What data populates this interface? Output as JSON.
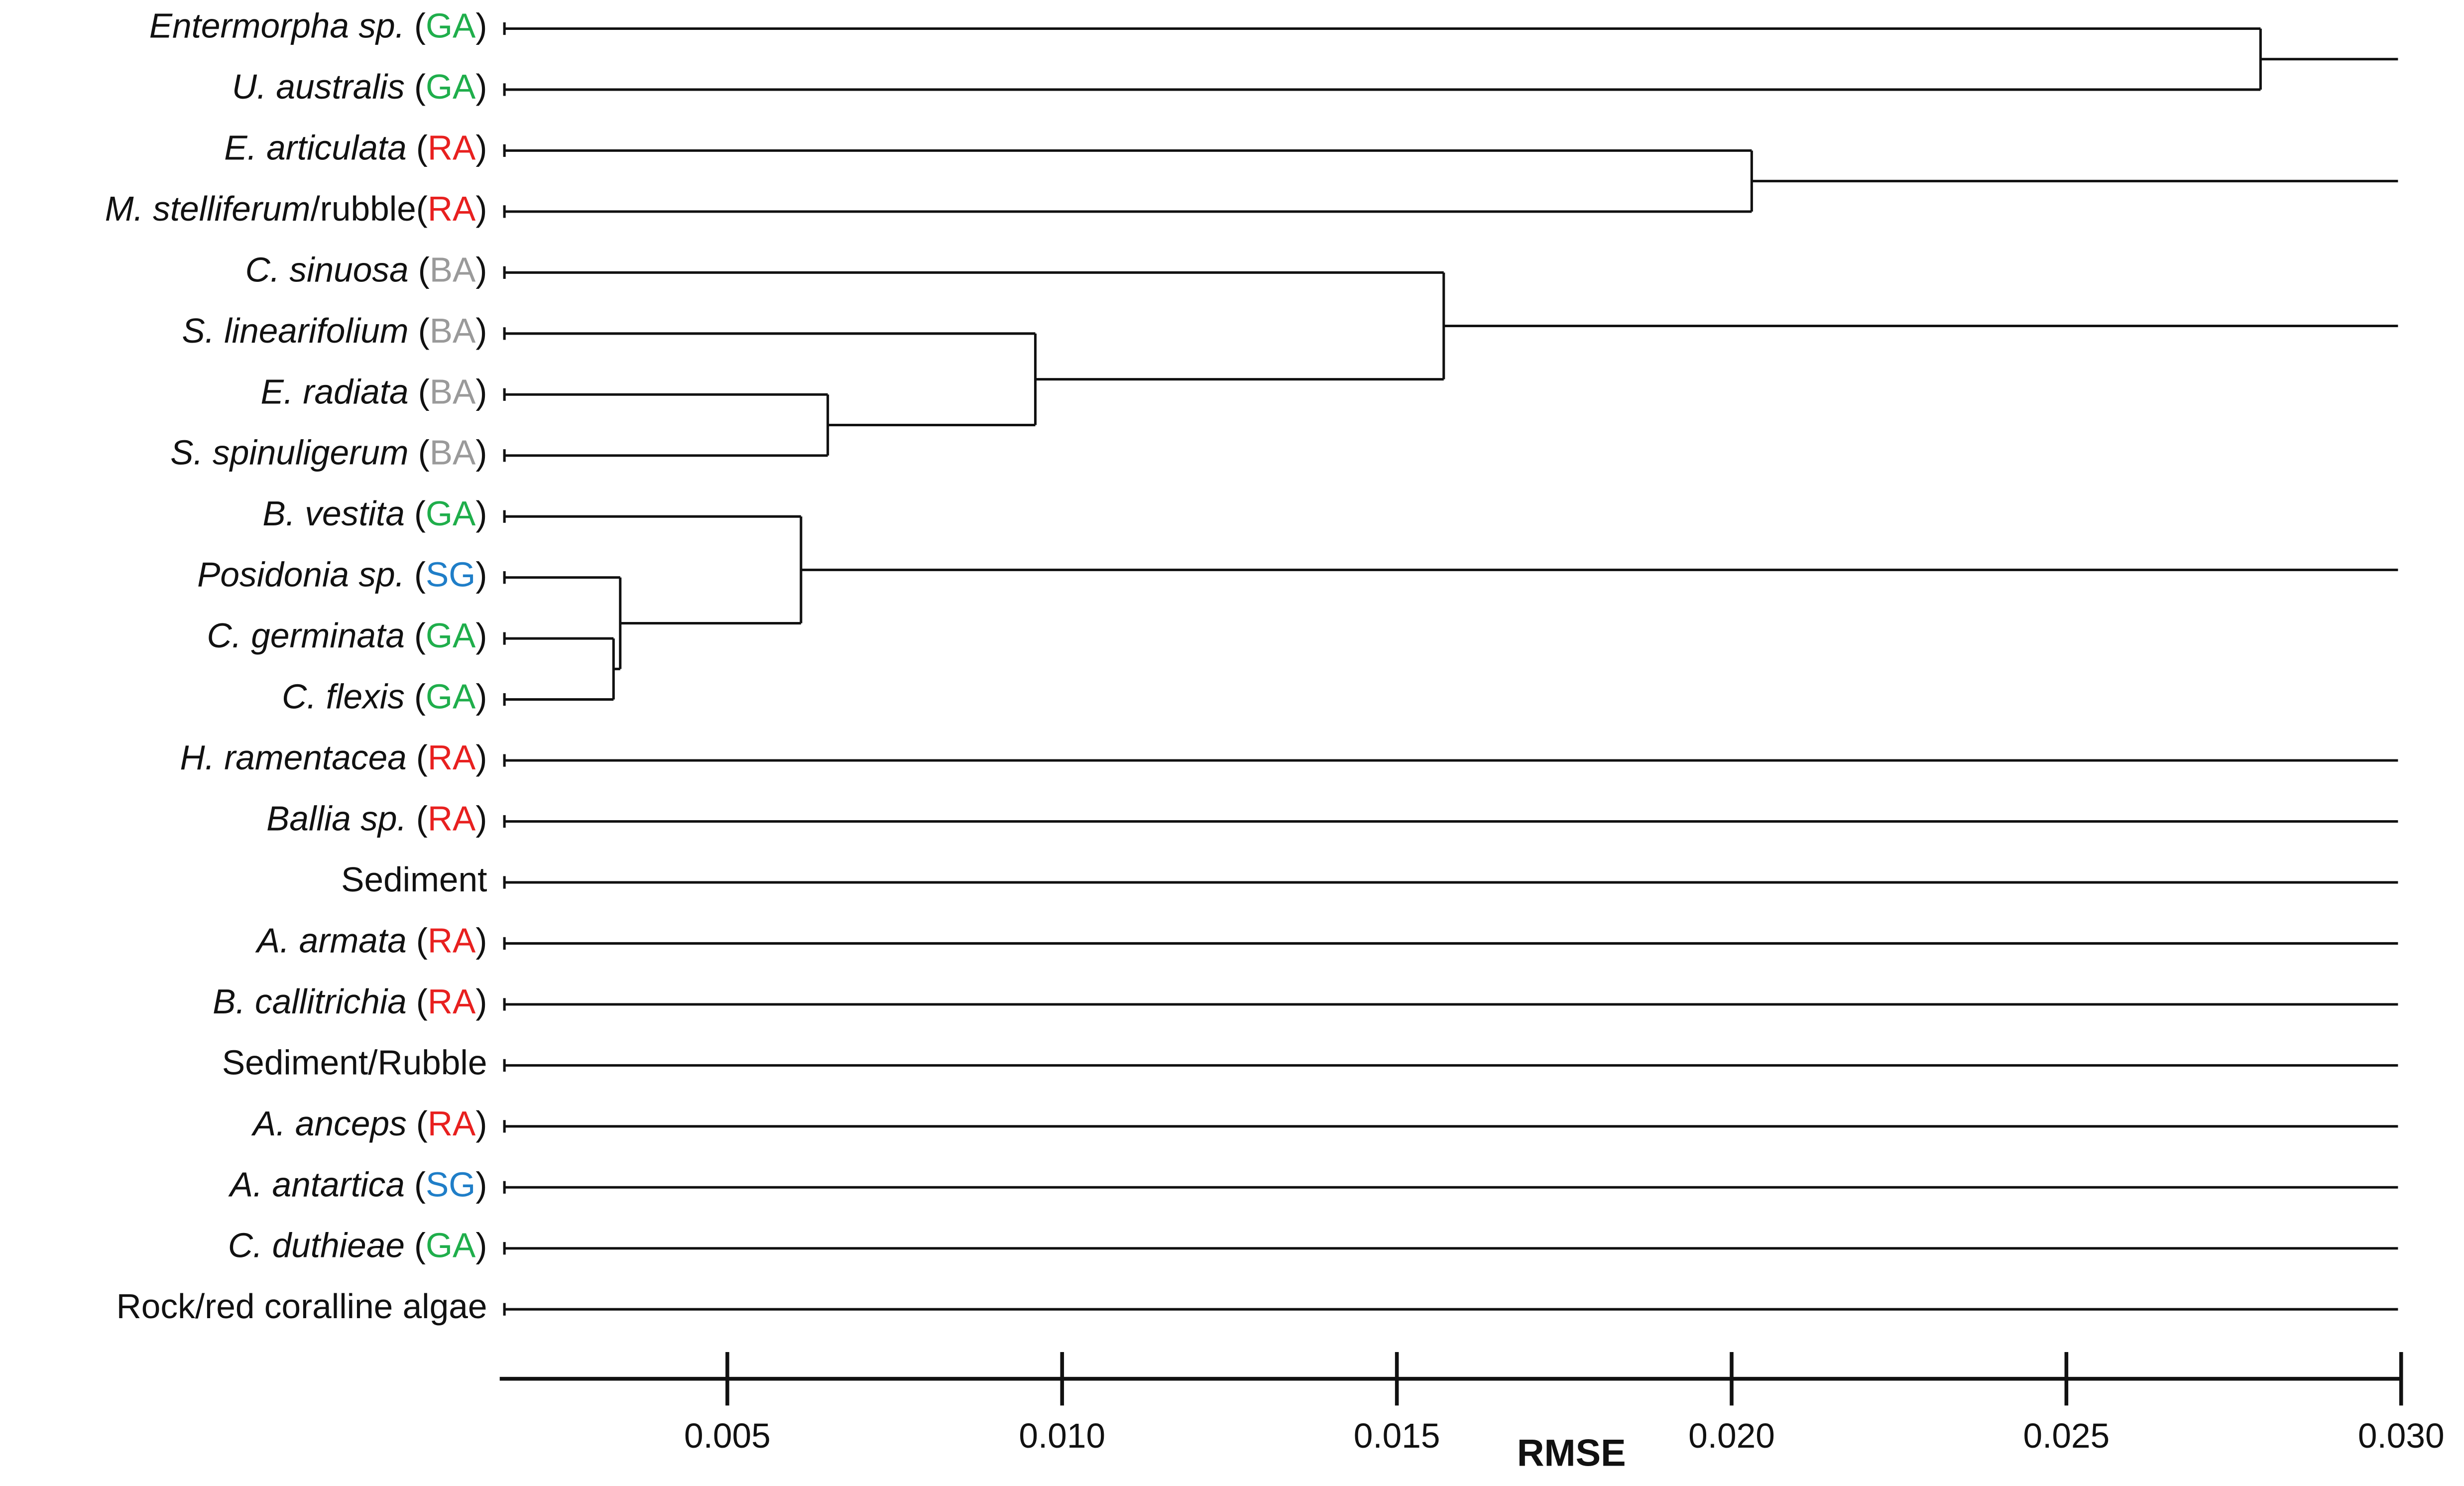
{
  "chart_data": {
    "type": "dendrogram",
    "xlabel": "RMSE",
    "xlim": [
      0.0016,
      0.03
    ],
    "xticks": [
      0.005,
      {
        "value": 0.01,
        "label": "0.010"
      },
      0.015,
      {
        "value": 0.02,
        "label": "0.020"
      },
      0.025,
      {
        "value": 0.03,
        "label": "0.030"
      }
    ],
    "leaves": [
      {
        "label": [
          {
            "text": "Entermorpha sp.",
            "italic": true
          },
          {
            "text": "("
          },
          {
            "text": "GA",
            "color": "#1fae4b"
          },
          {
            "text": ")"
          }
        ]
      },
      {
        "label": [
          {
            "text": "U. australis",
            "italic": true
          },
          {
            "text": "("
          },
          {
            "text": "GA",
            "color": "#1fae4b"
          },
          {
            "text": ")"
          }
        ]
      },
      {
        "label": [
          {
            "text": "E. articulata",
            "italic": true
          },
          {
            "text": "("
          },
          {
            "text": "RA",
            "color": "#e8201f"
          },
          {
            "text": ")"
          }
        ]
      },
      {
        "label": [
          {
            "text": "M. stelliferum",
            "italic": true
          },
          {
            "text": "/rubble"
          },
          {
            "text": "("
          },
          {
            "text": "RA",
            "color": "#e8201f"
          },
          {
            "text": ")"
          }
        ]
      },
      {
        "label": [
          {
            "text": "C. sinuosa",
            "italic": true
          },
          {
            "text": "("
          },
          {
            "text": "BA",
            "color": "#9a9a9a"
          },
          {
            "text": ")"
          }
        ]
      },
      {
        "label": [
          {
            "text": "S. linearifolium",
            "italic": true
          },
          {
            "text": "("
          },
          {
            "text": "BA",
            "color": "#9a9a9a"
          },
          {
            "text": ")"
          }
        ]
      },
      {
        "label": [
          {
            "text": "E. radiata",
            "italic": true
          },
          {
            "text": "("
          },
          {
            "text": "BA",
            "color": "#9a9a9a"
          },
          {
            "text": ")"
          }
        ]
      },
      {
        "label": [
          {
            "text": "S. spinuligerum",
            "italic": true
          },
          {
            "text": "("
          },
          {
            "text": "BA",
            "color": "#9a9a9a"
          },
          {
            "text": ")"
          }
        ]
      },
      {
        "label": [
          {
            "text": "B. vestita",
            "italic": true
          },
          {
            "text": "("
          },
          {
            "text": "GA",
            "color": "#1fae4b"
          },
          {
            "text": ")"
          }
        ]
      },
      {
        "label": [
          {
            "text": "Posidonia sp.",
            "italic": true
          },
          {
            "text": "("
          },
          {
            "text": "SG",
            "color": "#1f7ec8"
          },
          {
            "text": ")"
          }
        ]
      },
      {
        "label": [
          {
            "text": "C. germinata",
            "italic": true
          },
          {
            "text": "("
          },
          {
            "text": "GA",
            "color": "#1fae4b"
          },
          {
            "text": ")"
          }
        ]
      },
      {
        "label": [
          {
            "text": "C. flexis",
            "italic": true
          },
          {
            "text": "("
          },
          {
            "text": "GA",
            "color": "#1fae4b"
          },
          {
            "text": ")"
          }
        ]
      },
      {
        "label": [
          {
            "text": "H. ramentacea",
            "italic": true
          },
          {
            "text": "("
          },
          {
            "text": "RA",
            "color": "#e8201f"
          },
          {
            "text": ")"
          }
        ]
      },
      {
        "label": [
          {
            "text": "Ballia sp.",
            "italic": true
          },
          {
            "text": "("
          },
          {
            "text": "RA",
            "color": "#e8201f"
          },
          {
            "text": ")"
          }
        ]
      },
      {
        "label": [
          {
            "text": "Sediment"
          }
        ]
      },
      {
        "label": [
          {
            "text": "A. armata",
            "italic": true
          },
          {
            "text": "("
          },
          {
            "text": "RA",
            "color": "#e8201f"
          },
          {
            "text": ")"
          }
        ]
      },
      {
        "label": [
          {
            "text": "B. callitrichia",
            "italic": true
          },
          {
            "text": "("
          },
          {
            "text": "RA",
            "color": "#e8201f"
          },
          {
            "text": ")"
          }
        ]
      },
      {
        "label": [
          {
            "text": "Sediment/Rubble"
          }
        ]
      },
      {
        "label": [
          {
            "text": "A. anceps",
            "italic": true
          },
          {
            "text": "("
          },
          {
            "text": "RA",
            "color": "#e8201f"
          },
          {
            "text": ")"
          }
        ]
      },
      {
        "label": [
          {
            "text": "A. antartica",
            "italic": true
          },
          {
            "text": "("
          },
          {
            "text": "SG",
            "color": "#1f7ec8"
          },
          {
            "text": ")"
          }
        ]
      },
      {
        "label": [
          {
            "text": "C. duthieae",
            "italic": true
          },
          {
            "text": "("
          },
          {
            "text": "GA",
            "color": "#1fae4b"
          },
          {
            "text": ")"
          }
        ]
      },
      {
        "label": [
          {
            "text": "Rock/red coralline algae"
          }
        ]
      }
    ],
    "merges": [
      {
        "a": 0,
        "b": 1,
        "height": 0.0279
      },
      {
        "a": 2,
        "b": 3,
        "height": 0.0203
      },
      {
        "a": 6,
        "b": 7,
        "height": 0.0065
      },
      {
        "a": 5,
        "b": 24,
        "height": 0.0096
      },
      {
        "a": 4,
        "b": 25,
        "height": 0.0157
      },
      {
        "a": 10,
        "b": 11,
        "height": 0.0033
      },
      {
        "a": 9,
        "b": 27,
        "height": 0.0034
      },
      {
        "a": 8,
        "b": 28,
        "height": 0.0061
      }
    ]
  }
}
